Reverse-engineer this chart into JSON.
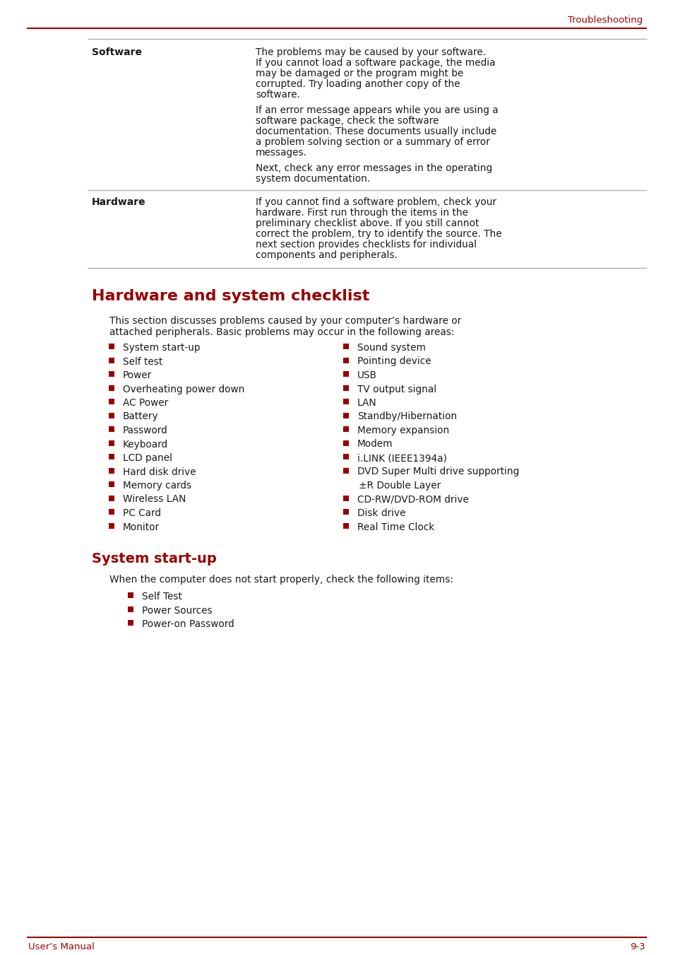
{
  "page_bg": "#ffffff",
  "red_color": "#990000",
  "text_color": "#1a1a1a",
  "gray_line": "#aaaaaa",
  "header_text": "Troubleshooting",
  "footer_left": "User’s Manual",
  "footer_right": "9-3",
  "section_title": "Hardware and system checklist",
  "section_intro_1": "This section discusses problems caused by your computer’s hardware or",
  "section_intro_2": "attached peripherals. Basic problems may occur in the following areas:",
  "subsection_title": "System start-up",
  "subsection_intro": "When the computer does not start properly, check the following items:",
  "subsection_bullets": [
    "Self Test",
    "Power Sources",
    "Power-on Password"
  ],
  "left_bullets": [
    "System start-up",
    "Self test",
    "Power",
    "Overheating power down",
    "AC Power",
    "Battery",
    "Password",
    "Keyboard",
    "LCD panel",
    "Hard disk drive",
    "Memory cards",
    "Wireless LAN",
    "PC Card",
    "Monitor"
  ],
  "right_bullets": [
    "Sound system",
    "Pointing device",
    "USB",
    "TV output signal",
    "LAN",
    "Standby/Hibernation",
    "Memory expansion",
    "Modem",
    "i.LINK (IEEE1394a)",
    "DVD Super Multi drive supporting",
    "±R Double Layer",
    "CD-RW/DVD-ROM drive",
    "Disk drive",
    "Real Time Clock"
  ],
  "right_bullet_flags": [
    0,
    0,
    0,
    0,
    0,
    0,
    0,
    0,
    0,
    1,
    2,
    0,
    0,
    0
  ],
  "table_software_p1_lines": [
    "The problems may be caused by your software.",
    "If you cannot load a software package, the media",
    "may be damaged or the program might be",
    "corrupted. Try loading another copy of the",
    "software."
  ],
  "table_software_p2_lines": [
    "If an error message appears while you are using a",
    "software package, check the software",
    "documentation. These documents usually include",
    "a problem solving section or a summary of error",
    "messages."
  ],
  "table_software_p3_lines": [
    "Next, check any error messages in the operating",
    "system documentation."
  ],
  "table_hardware_p1_lines": [
    "If you cannot find a software problem, check your",
    "hardware. First run through the items in the",
    "preliminary checklist above. If you still cannot",
    "correct the problem, try to identify the source. The",
    "next section provides checklists for individual",
    "components and peripherals."
  ]
}
